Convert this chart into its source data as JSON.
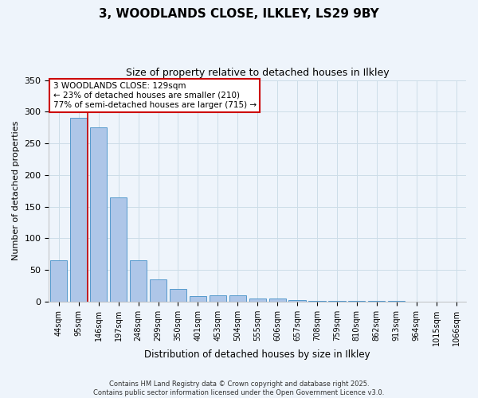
{
  "title_line1": "3, WOODLANDS CLOSE, ILKLEY, LS29 9BY",
  "title_line2": "Size of property relative to detached houses in Ilkley",
  "xlabel": "Distribution of detached houses by size in Ilkley",
  "ylabel": "Number of detached properties",
  "categories": [
    "44sqm",
    "95sqm",
    "146sqm",
    "197sqm",
    "248sqm",
    "299sqm",
    "350sqm",
    "401sqm",
    "453sqm",
    "504sqm",
    "555sqm",
    "606sqm",
    "657sqm",
    "708sqm",
    "759sqm",
    "810sqm",
    "862sqm",
    "913sqm",
    "964sqm",
    "1015sqm",
    "1066sqm"
  ],
  "values": [
    65,
    290,
    275,
    165,
    65,
    35,
    20,
    8,
    10,
    10,
    5,
    5,
    2,
    1,
    1,
    1,
    0.5,
    0.5,
    0.3,
    0.3,
    0.3
  ],
  "bar_color": "#aec6e8",
  "bar_edge_color": "#5599cc",
  "grid_color": "#ccdde8",
  "background_color": "#eef4fb",
  "annotation_box_color": "#ffffff",
  "annotation_border_color": "#cc0000",
  "property_line_color": "#cc0000",
  "annotation_text_line1": "3 WOODLANDS CLOSE: 129sqm",
  "annotation_text_line2": "← 23% of detached houses are smaller (210)",
  "annotation_text_line3": "77% of semi-detached houses are larger (715) →",
  "footer_line1": "Contains HM Land Registry data © Crown copyright and database right 2025.",
  "footer_line2": "Contains public sector information licensed under the Open Government Licence v3.0.",
  "ylim": [
    0,
    350
  ],
  "yticks": [
    0,
    50,
    100,
    150,
    200,
    250,
    300,
    350
  ]
}
